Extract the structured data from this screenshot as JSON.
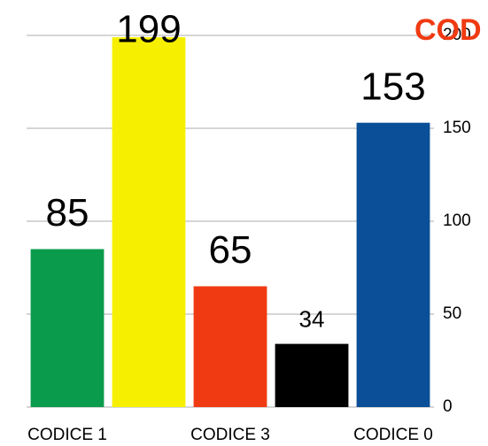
{
  "chart_data": {
    "type": "bar",
    "title": "COD",
    "categories": [
      "CODICE 1",
      null,
      "CODICE 3",
      null,
      "CODICE 0"
    ],
    "values": [
      85,
      199,
      65,
      34,
      153
    ],
    "colors": [
      "#0b9b4c",
      "#f6f000",
      "#f03a12",
      "#000000",
      "#0a4f97"
    ],
    "ylim": [
      0,
      200
    ],
    "yticks": [
      0,
      50,
      100,
      150,
      200
    ],
    "grid": true,
    "y_axis_side": "right"
  }
}
